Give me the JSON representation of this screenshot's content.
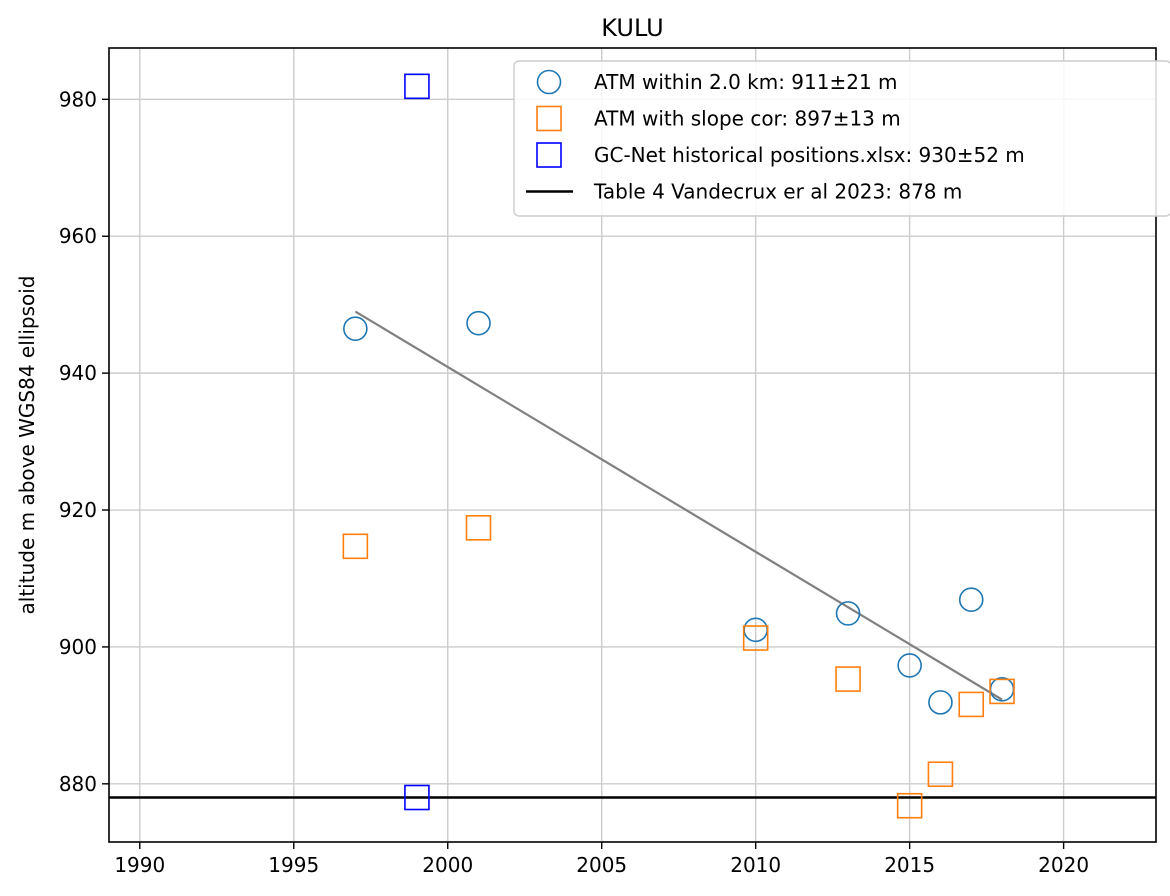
{
  "chart_data": {
    "type": "scatter",
    "title": "KULU",
    "xlabel": "",
    "ylabel": "altitude m above WGS84 ellipsoid",
    "xlim": [
      1989,
      2023
    ],
    "ylim": [
      871.5,
      987.5
    ],
    "xticks": [
      1990,
      1995,
      2000,
      2005,
      2010,
      2015,
      2020
    ],
    "yticks": [
      880,
      900,
      920,
      940,
      960,
      980
    ],
    "grid": true,
    "legend_position": "top-right",
    "series": [
      {
        "name": "ATM within 2.0 km: 911±21 m",
        "marker": "circle",
        "color": "#1f77b4",
        "points": [
          {
            "x": 1997,
            "y": 946.5
          },
          {
            "x": 2001,
            "y": 947.3
          },
          {
            "x": 2010,
            "y": 902.5
          },
          {
            "x": 2013,
            "y": 904.9
          },
          {
            "x": 2015,
            "y": 897.3
          },
          {
            "x": 2016,
            "y": 891.9
          },
          {
            "x": 2017,
            "y": 906.9
          },
          {
            "x": 2018,
            "y": 893.8
          }
        ]
      },
      {
        "name": "ATM with slope cor: 897±13 m",
        "marker": "square",
        "color": "#ff7f0e",
        "points": [
          {
            "x": 1997,
            "y": 914.7
          },
          {
            "x": 2001,
            "y": 917.4
          },
          {
            "x": 2010,
            "y": 901.3
          },
          {
            "x": 2013,
            "y": 895.3
          },
          {
            "x": 2015,
            "y": 876.8
          },
          {
            "x": 2016,
            "y": 881.4
          },
          {
            "x": 2017,
            "y": 891.6
          },
          {
            "x": 2018,
            "y": 893.5
          }
        ]
      },
      {
        "name": "GC-Net historical positions.xlsx: 930±52 m",
        "marker": "square",
        "color": "#0000ff",
        "points": [
          {
            "x": 1999,
            "y": 981.9
          },
          {
            "x": 1999,
            "y": 878.0
          }
        ]
      }
    ],
    "hlines": [
      {
        "name": "Table 4 Vandecrux er al 2023: 878 m",
        "y": 878,
        "color": "#000000"
      }
    ],
    "trend_line": {
      "color": "#808080",
      "x": [
        1997,
        2018
      ],
      "y": [
        949.0,
        892.3
      ]
    }
  }
}
